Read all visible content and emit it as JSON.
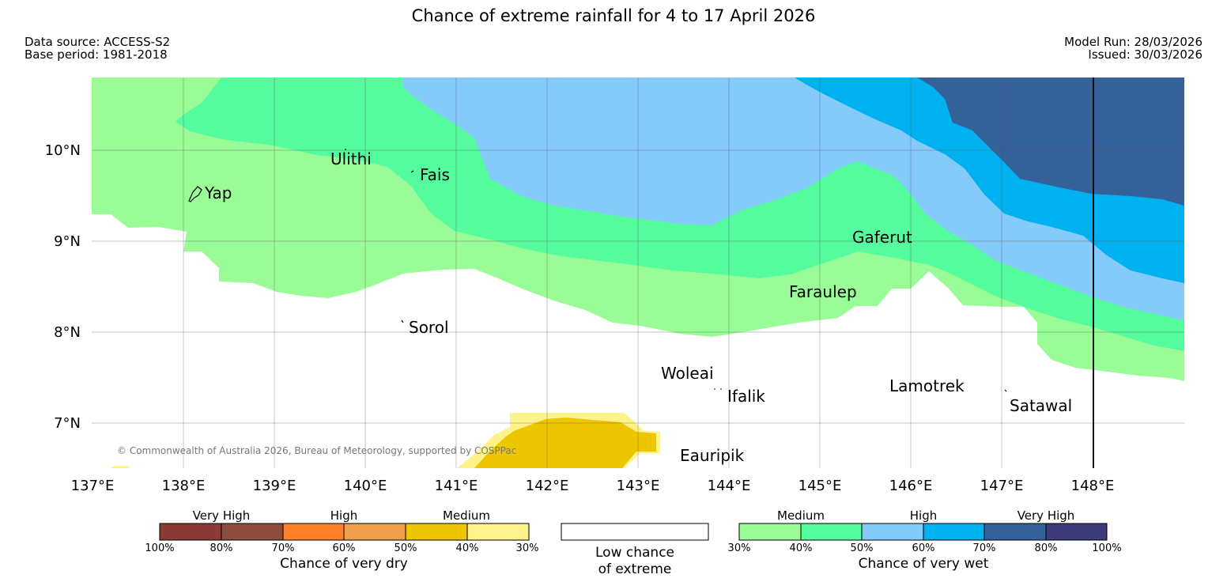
{
  "title": "Chance of extreme rainfall for 4 to 17 April 2026",
  "data_source": "Data source: ACCESS-S2",
  "base_period": "Base period: 1981-2018",
  "model_run": "Model Run: 28/03/2026",
  "issued": "Issued: 30/03/2026",
  "copyright": "© Commonwealth of Australia 2026, Bureau of Meteorology, supported by COSPPac",
  "axes": {
    "lat_labels": [
      "10°N",
      "9°N",
      "8°N",
      "7°N"
    ],
    "lon_labels": [
      "137°E",
      "138°E",
      "139°E",
      "140°E",
      "141°E",
      "142°E",
      "143°E",
      "144°E",
      "145°E",
      "146°E",
      "147°E",
      "148°E"
    ]
  },
  "places": {
    "yap": "Yap",
    "ulithi": "Ulithi",
    "fais": "Fais",
    "gaferut": "Gaferut",
    "faraulep": "Faraulep",
    "sorol": "Sorol",
    "woleai": "Woleai",
    "ifalik": "Ifalik",
    "lamotrek": "Lamotrek",
    "satawal": "Satawal",
    "eauripik": "Eauripik"
  },
  "legend": {
    "dry": {
      "title": "Chance of very dry",
      "categories": [
        "Very High",
        "High",
        "Medium"
      ],
      "ticks": [
        "100%",
        "80%",
        "70%",
        "60%",
        "50%",
        "40%",
        "30%"
      ],
      "colors": [
        "#8b3a35",
        "#8d4e3e",
        "#fd8127",
        "#ef9e4c",
        "#edc600",
        "#fef28a"
      ]
    },
    "low": {
      "line1": "Low chance",
      "line2": "of extreme"
    },
    "wet": {
      "title": "Chance of very wet",
      "categories": [
        "Medium",
        "High",
        "Very High"
      ],
      "ticks": [
        "30%",
        "40%",
        "50%",
        "60%",
        "70%",
        "80%",
        "100%"
      ],
      "colors": [
        "#9afc96",
        "#55fc9d",
        "#84cbfb",
        "#00b1ef",
        "#35619b",
        "#3d3b79"
      ]
    }
  }
}
